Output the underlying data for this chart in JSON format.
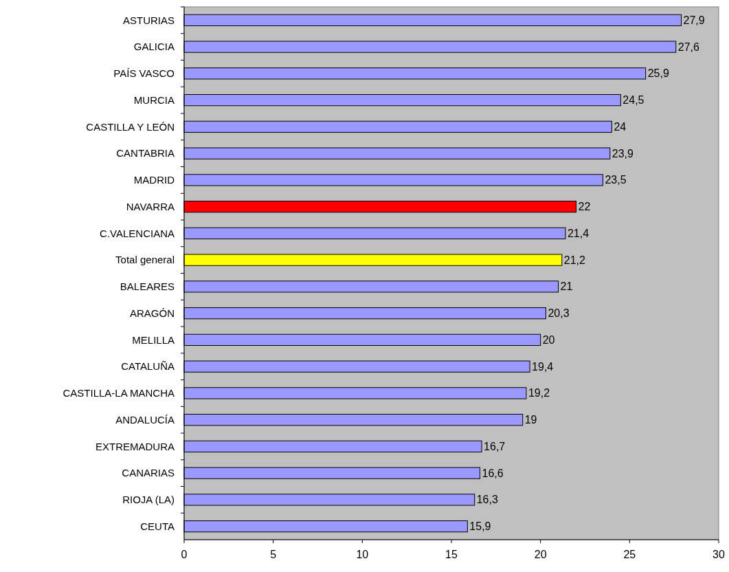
{
  "chart_data": {
    "type": "bar",
    "orientation": "horizontal",
    "categories": [
      "ASTURIAS",
      "GALICIA",
      "PAÍS VASCO",
      "MURCIA",
      "CASTILLA Y LEÓN",
      "CANTABRIA",
      "MADRID",
      "NAVARRA",
      "C.VALENCIANA",
      "Total general",
      "BALEARES",
      "ARAGÓN",
      "MELILLA",
      "CATALUÑA",
      "CASTILLA-LA MANCHA",
      "ANDALUCÍA",
      "EXTREMADURA",
      "CANARIAS",
      "RIOJA (LA)",
      "CEUTA"
    ],
    "values": [
      27.9,
      27.6,
      25.9,
      24.5,
      24,
      23.9,
      23.5,
      22,
      21.4,
      21.2,
      21,
      20.3,
      20,
      19.4,
      19.2,
      19,
      16.7,
      16.6,
      16.3,
      15.9
    ],
    "value_labels": [
      "27,9",
      "27,6",
      "25,9",
      "24,5",
      "24",
      "23,9",
      "23,5",
      "22",
      "21,4",
      "21,2",
      "21",
      "20,3",
      "20",
      "19,4",
      "19,2",
      "19",
      "16,7",
      "16,6",
      "16,3",
      "15,9"
    ],
    "colors": [
      "#9999ff",
      "#9999ff",
      "#9999ff",
      "#9999ff",
      "#9999ff",
      "#9999ff",
      "#9999ff",
      "#ff0000",
      "#9999ff",
      "#ffff00",
      "#9999ff",
      "#9999ff",
      "#9999ff",
      "#9999ff",
      "#9999ff",
      "#9999ff",
      "#9999ff",
      "#9999ff",
      "#9999ff",
      "#9999ff"
    ],
    "xlim": [
      0,
      30
    ],
    "xticks": [
      0,
      5,
      10,
      15,
      20,
      25,
      30
    ],
    "grid": false
  }
}
